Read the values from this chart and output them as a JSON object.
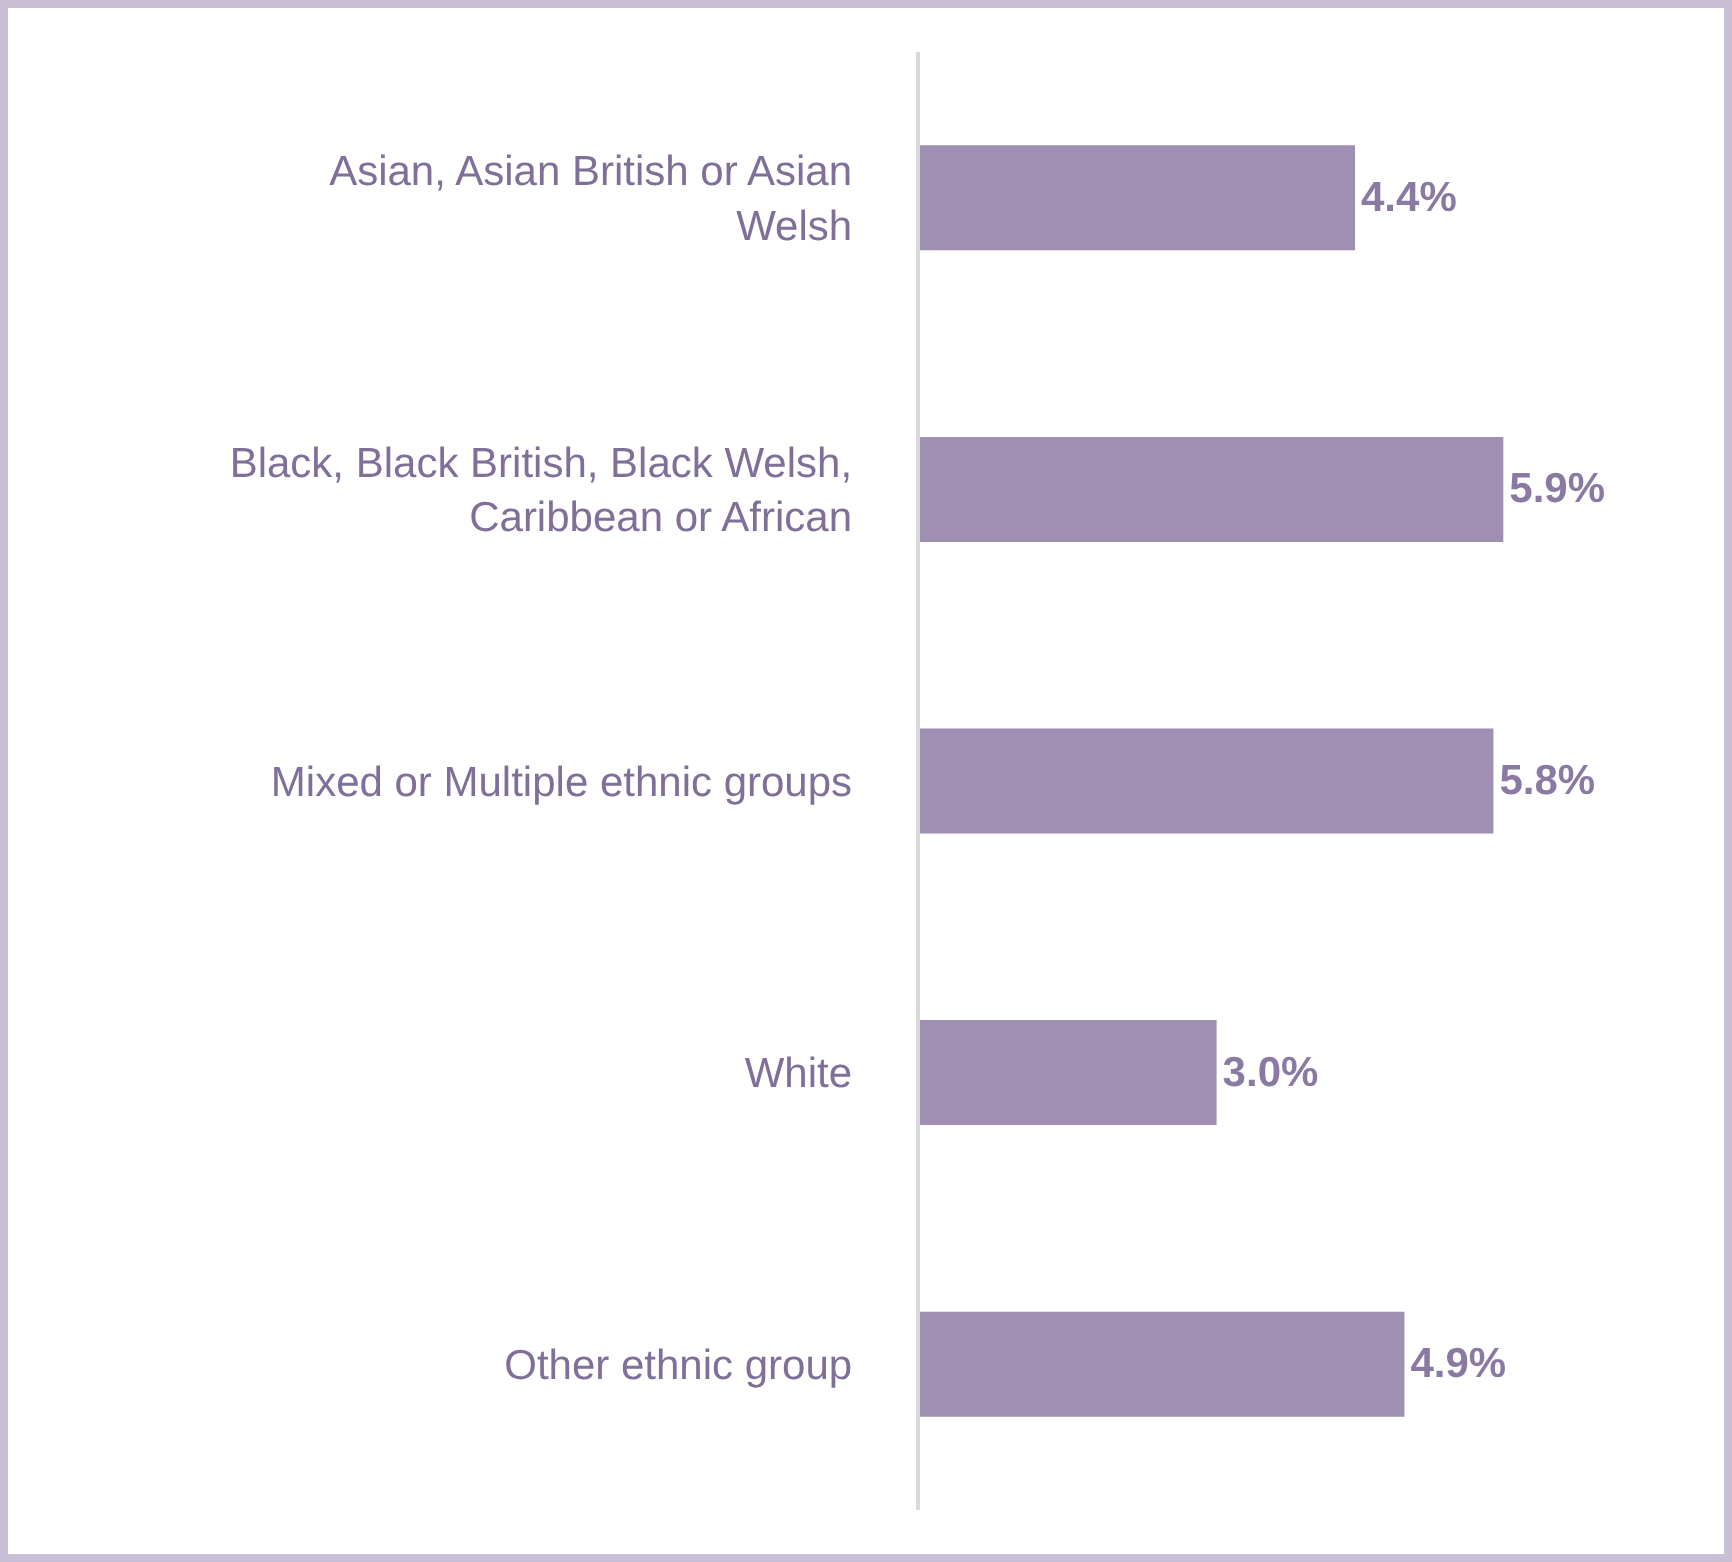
{
  "chart_data": {
    "type": "bar",
    "orientation": "horizontal",
    "categories": [
      "Asian, Asian British or Asian Welsh",
      "Black, Black British, Black Welsh, Caribbean or African",
      "Mixed or Multiple ethnic groups",
      "White",
      "Other ethnic group"
    ],
    "values": [
      4.4,
      5.9,
      5.8,
      3.0,
      4.9
    ],
    "value_labels": [
      "4.4%",
      "5.9%",
      "5.8%",
      "3.0%",
      "4.9%"
    ],
    "color": "#9f8fb3",
    "tick_labels": "y"
  }
}
